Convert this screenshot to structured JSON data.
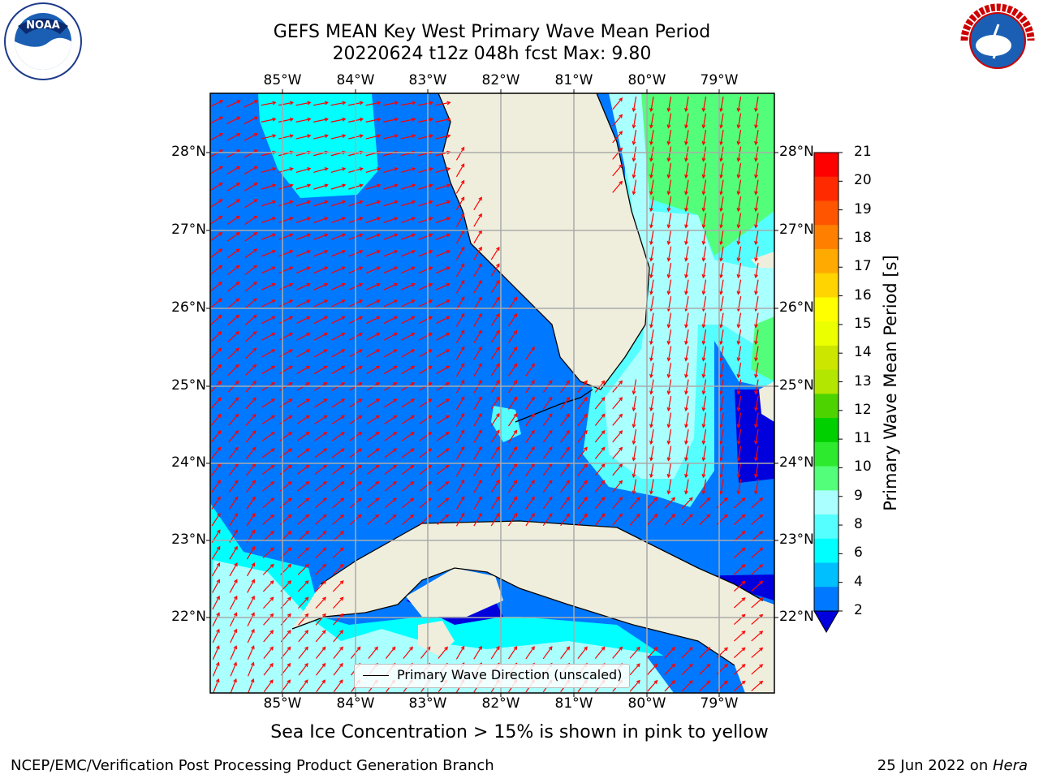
{
  "title_line1": "GEFS MEAN Key West Primary Wave Mean Period",
  "title_line2": "20220624 t12z 048h fcst   Max: 9.80",
  "lon_labels": [
    "85°W",
    "84°W",
    "83°W",
    "82°W",
    "81°W",
    "80°W",
    "79°W"
  ],
  "lat_labels": [
    "28°N",
    "27°N",
    "26°N",
    "25°N",
    "24°N",
    "23°N",
    "22°N"
  ],
  "colorbar": {
    "label": "Primary Wave Mean Period [s]",
    "ticks": [
      "21",
      "20",
      "19",
      "18",
      "17",
      "16",
      "15",
      "14",
      "13",
      "12",
      "11",
      "10",
      "9",
      "8",
      "6",
      "4",
      "2"
    ],
    "colors": [
      "#ff0000",
      "#ff2a00",
      "#ff5500",
      "#ff8000",
      "#ffaa00",
      "#ffd400",
      "#ffff00",
      "#ecff00",
      "#cce600",
      "#b3e600",
      "#4dd400",
      "#00d000",
      "#2eea2e",
      "#53ff7a",
      "#aaffff",
      "#55ffff",
      "#00ffff",
      "#00bfff",
      "#0078ff",
      "#0000dd"
    ]
  },
  "legend": {
    "label": "Primary Wave Direction (unscaled)"
  },
  "note": "Sea Ice Concentration > 15% is shown in pink to yellow",
  "credit_left": "NCEP/EMC/Verification Post Processing Product Generation Branch",
  "credit_right_date": "25 Jun 2022 on ",
  "credit_right_machine": "Hera",
  "logos": {
    "left": "noaa-logo",
    "right": "nws-logo"
  },
  "nws_logo_text": "NATIONAL WEATHER SERVICE"
}
